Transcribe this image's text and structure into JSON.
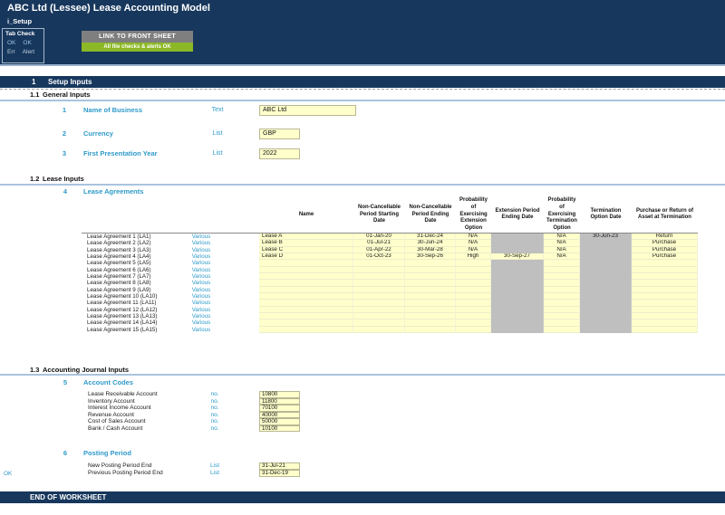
{
  "header": {
    "title": "ABC Ltd (Lessee) Lease Accounting Model",
    "sheet_name": "i_Setup",
    "tab_check": {
      "label": "Tab Check",
      "ok_left": "OK",
      "ok_right": "OK",
      "err": "Err",
      "alert": "Alert"
    },
    "link_button": "LINK TO FRONT SHEET",
    "status_bar": "All file checks & alerts OK"
  },
  "colors": {
    "navy": "#17375D",
    "teal_label": "#2E9AC9",
    "input_bg": "#FFFFCC",
    "blocked_bg": "#BFBFBF",
    "status_green": "#8CB828",
    "button_gray": "#7F7F7F"
  },
  "section_setup": {
    "num": "1",
    "title": "Setup Inputs"
  },
  "general": {
    "num": "1.1",
    "title": "General Inputs",
    "items": [
      {
        "n": "1",
        "label": "Name of Business",
        "type": "Text",
        "value": "ABC Ltd"
      },
      {
        "n": "2",
        "label": "Currency",
        "type": "List",
        "value": "GBP"
      },
      {
        "n": "3",
        "label": "First Presentation Year",
        "type": "List",
        "value": "2022"
      }
    ]
  },
  "lease": {
    "num": "1.2",
    "title": "Lease Inputs",
    "item_num": "4",
    "item_title": "Lease Agreements",
    "columns": [
      "Name",
      "Non-Cancellable Period Starting Date",
      "Non-Cancellable Period Ending Date",
      "Probability of Exercising Extension Option",
      "Extension Period Ending Date",
      "Probability of Exercising Termination Option",
      "Termination Option Date",
      "Purchase or Return of Asset at Termination"
    ],
    "rows": [
      {
        "label": "Lease Agreement 1 (LA1)",
        "tag": "Various",
        "cells": [
          {
            "v": "Lease A"
          },
          {
            "v": "01-Jan-20"
          },
          {
            "v": "31-Dec-24"
          },
          {
            "v": "N/A"
          },
          {
            "v": "",
            "g": 1
          },
          {
            "v": "N/A"
          },
          {
            "v": "30-Jun-23",
            "g": 1
          },
          {
            "v": "Return"
          }
        ]
      },
      {
        "label": "Lease Agreement 2 (LA2)",
        "tag": "Various",
        "cells": [
          {
            "v": "Lease B"
          },
          {
            "v": "01-Jul-21"
          },
          {
            "v": "30-Jun-24"
          },
          {
            "v": "N/A"
          },
          {
            "v": "",
            "g": 1
          },
          {
            "v": "N/A"
          },
          {
            "v": "",
            "g": 1
          },
          {
            "v": "Purchase"
          }
        ]
      },
      {
        "label": "Lease Agreement 3 (LA3)",
        "tag": "Various",
        "cells": [
          {
            "v": "Lease C"
          },
          {
            "v": "01-Apr-22"
          },
          {
            "v": "30-Mar-28"
          },
          {
            "v": "N/A"
          },
          {
            "v": "",
            "g": 1
          },
          {
            "v": "N/A"
          },
          {
            "v": "",
            "g": 1
          },
          {
            "v": "Purchase"
          }
        ]
      },
      {
        "label": "Lease Agreement 4 (LA4)",
        "tag": "Various",
        "cells": [
          {
            "v": "Lease D"
          },
          {
            "v": "01-Oct-23"
          },
          {
            "v": "30-Sep-26"
          },
          {
            "v": "High"
          },
          {
            "v": "30-Sep-27"
          },
          {
            "v": "N/A"
          },
          {
            "v": "",
            "g": 1
          },
          {
            "v": "Purchase"
          }
        ]
      },
      {
        "label": "Lease Agreement 5 (LA5)",
        "tag": "Various",
        "cells": [
          {
            "v": ""
          },
          {
            "v": ""
          },
          {
            "v": ""
          },
          {
            "v": ""
          },
          {
            "v": "",
            "g": 1
          },
          {
            "v": ""
          },
          {
            "v": "",
            "g": 1
          },
          {
            "v": ""
          }
        ]
      },
      {
        "label": "Lease Agreement 6 (LA6)",
        "tag": "Various",
        "cells": [
          {
            "v": ""
          },
          {
            "v": ""
          },
          {
            "v": ""
          },
          {
            "v": ""
          },
          {
            "v": "",
            "g": 1
          },
          {
            "v": ""
          },
          {
            "v": "",
            "g": 1
          },
          {
            "v": ""
          }
        ]
      },
      {
        "label": "Lease Agreement 7 (LA7)",
        "tag": "Various",
        "cells": [
          {
            "v": ""
          },
          {
            "v": ""
          },
          {
            "v": ""
          },
          {
            "v": ""
          },
          {
            "v": "",
            "g": 1
          },
          {
            "v": ""
          },
          {
            "v": "",
            "g": 1
          },
          {
            "v": ""
          }
        ]
      },
      {
        "label": "Lease Agreement 8 (LA8)",
        "tag": "Various",
        "cells": [
          {
            "v": ""
          },
          {
            "v": ""
          },
          {
            "v": ""
          },
          {
            "v": ""
          },
          {
            "v": "",
            "g": 1
          },
          {
            "v": ""
          },
          {
            "v": "",
            "g": 1
          },
          {
            "v": ""
          }
        ]
      },
      {
        "label": "Lease Agreement 9 (LA9)",
        "tag": "Various",
        "cells": [
          {
            "v": ""
          },
          {
            "v": ""
          },
          {
            "v": ""
          },
          {
            "v": ""
          },
          {
            "v": "",
            "g": 1
          },
          {
            "v": ""
          },
          {
            "v": "",
            "g": 1
          },
          {
            "v": ""
          }
        ]
      },
      {
        "label": "Lease Agreement 10 (LA10)",
        "tag": "Various",
        "cells": [
          {
            "v": ""
          },
          {
            "v": ""
          },
          {
            "v": ""
          },
          {
            "v": ""
          },
          {
            "v": "",
            "g": 1
          },
          {
            "v": ""
          },
          {
            "v": "",
            "g": 1
          },
          {
            "v": ""
          }
        ]
      },
      {
        "label": "Lease Agreement 11 (LA11)",
        "tag": "Various",
        "cells": [
          {
            "v": ""
          },
          {
            "v": ""
          },
          {
            "v": ""
          },
          {
            "v": ""
          },
          {
            "v": "",
            "g": 1
          },
          {
            "v": ""
          },
          {
            "v": "",
            "g": 1
          },
          {
            "v": ""
          }
        ]
      },
      {
        "label": "Lease Agreement 12 (LA12)",
        "tag": "Various",
        "cells": [
          {
            "v": ""
          },
          {
            "v": ""
          },
          {
            "v": ""
          },
          {
            "v": ""
          },
          {
            "v": "",
            "g": 1
          },
          {
            "v": ""
          },
          {
            "v": "",
            "g": 1
          },
          {
            "v": ""
          }
        ]
      },
      {
        "label": "Lease Agreement 13 (LA13)",
        "tag": "Various",
        "cells": [
          {
            "v": ""
          },
          {
            "v": ""
          },
          {
            "v": ""
          },
          {
            "v": ""
          },
          {
            "v": "",
            "g": 1
          },
          {
            "v": ""
          },
          {
            "v": "",
            "g": 1
          },
          {
            "v": ""
          }
        ]
      },
      {
        "label": "Lease Agreement 14 (LA14)",
        "tag": "Various",
        "cells": [
          {
            "v": ""
          },
          {
            "v": ""
          },
          {
            "v": ""
          },
          {
            "v": ""
          },
          {
            "v": "",
            "g": 1
          },
          {
            "v": ""
          },
          {
            "v": "",
            "g": 1
          },
          {
            "v": ""
          }
        ]
      },
      {
        "label": "Lease Agreement 15 (LA15)",
        "tag": "Various",
        "cells": [
          {
            "v": ""
          },
          {
            "v": ""
          },
          {
            "v": ""
          },
          {
            "v": ""
          },
          {
            "v": "",
            "g": 1
          },
          {
            "v": ""
          },
          {
            "v": "",
            "g": 1
          },
          {
            "v": ""
          }
        ]
      }
    ]
  },
  "journal": {
    "num": "1.3",
    "title": "Accounting Journal Inputs",
    "item_num": "5",
    "item_title": "Account Codes",
    "accounts": [
      {
        "label": "Lease Receivable Account",
        "type": "no.",
        "value": "10800"
      },
      {
        "label": "Inventory Account",
        "type": "no.",
        "value": "11800"
      },
      {
        "label": "Interest Income Account",
        "type": "no.",
        "value": "70100"
      },
      {
        "label": "Revenue Account",
        "type": "no.",
        "value": "40000"
      },
      {
        "label": "Cost of Sales Account",
        "type": "no.",
        "value": "50000"
      },
      {
        "label": "Bank / Cash Account",
        "type": "no.",
        "value": "10100"
      }
    ]
  },
  "posting": {
    "item_num": "6",
    "item_title": "Posting Period",
    "check": "OK",
    "rows": [
      {
        "label": "New Posting Period End",
        "type": "List",
        "value": "31-Jul-21"
      },
      {
        "label": "Previous Posting Period End",
        "type": "List",
        "value": "31-Dec-19"
      }
    ]
  },
  "footer": {
    "label": "END OF WORKSHEET"
  }
}
